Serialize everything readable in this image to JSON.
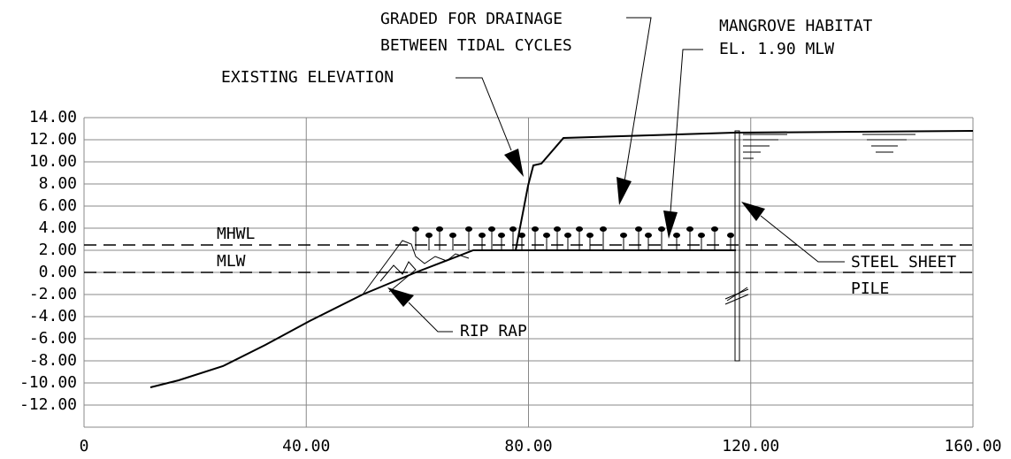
{
  "y_axis": {
    "ticks": [
      "14.00",
      "12.00",
      "10.00",
      "8.00",
      "6.00",
      "4.00",
      "2.00",
      "0.00",
      "-2.00",
      "-4.00",
      "-6.00",
      "-8.00",
      "-10.00",
      "-12.00"
    ]
  },
  "x_axis": {
    "ticks": [
      "0",
      "40.00",
      "80.00",
      "120.00",
      "160.00"
    ]
  },
  "levels": {
    "mhwl": "MHWL",
    "mlw": "MLW"
  },
  "annotations": {
    "graded": [
      "GRADED FOR DRAINAGE",
      "BETWEEN TIDAL CYCLES"
    ],
    "mangrove": [
      "MANGROVE HABITAT",
      "EL. 1.90 MLW"
    ],
    "existing": "EXISTING ELEVATION",
    "riprap": "RIP RAP",
    "pile": [
      "STEEL SHEET",
      "PILE"
    ]
  }
}
